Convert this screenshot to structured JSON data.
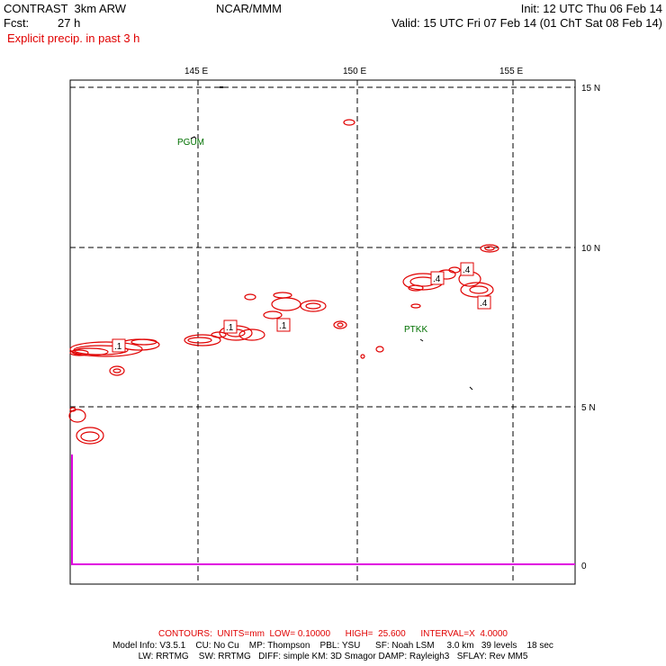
{
  "header": {
    "model": "CONTRAST  3km ARW",
    "fcst_label": "Fcst:",
    "fcst_value": "27 h",
    "center": "NCAR/MMM",
    "init": "Init: 12 UTC Thu 06 Feb 14",
    "valid": "Valid: 15 UTC Fri 07 Feb 14 (01 ChT Sat 08 Feb 14)",
    "field": "Explicit precip. in past 3 h"
  },
  "map": {
    "lon_labels": [
      "145 E",
      "150 E",
      "155 E"
    ],
    "lat_labels": [
      "15 N",
      "10 N",
      "5 N",
      "0"
    ],
    "stations": [
      {
        "id": "PGUM"
      },
      {
        "id": "PTKK"
      }
    ],
    "contour_labels": [
      ".1",
      ".1",
      ".1",
      ".4",
      ".4",
      ".4"
    ],
    "colors": {
      "contour": "#e00000",
      "grid": "#000000",
      "station": "#007000",
      "boundary": "#e000e0"
    }
  },
  "footer": {
    "contours": "CONTOURS:  UNITS=mm  LOW= 0.10000      HIGH=  25.600      INTERVAL=X  4.0000",
    "model_info_1": "Model Info: V3.5.1    CU: No Cu    MP: Thompson    PBL: YSU      SF: Noah LSM     3.0 km   39 levels    18 sec",
    "model_info_2": "LW: RRTMG    SW: RRTMG   DIFF: simple KM: 3D Smagor DAMP: Rayleigh3   SFLAY: Rev MM5"
  }
}
